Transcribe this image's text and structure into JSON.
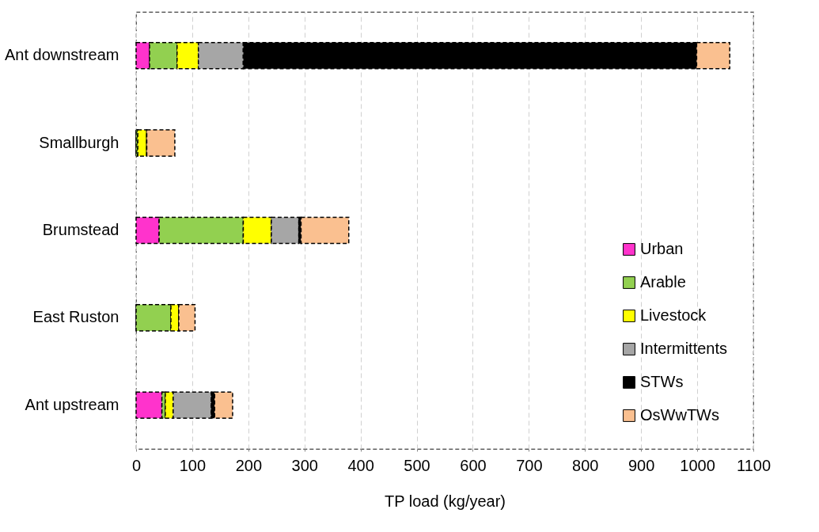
{
  "chart_data": {
    "type": "bar",
    "orientation": "horizontal",
    "stacked": true,
    "xlabel": "TP load (kg/year)",
    "categories": [
      "Ant downstream",
      "Smallburgh",
      "Brumstead",
      "East Ruston",
      "Ant upstream"
    ],
    "series": [
      {
        "name": "Urban",
        "color": "#ff33cc",
        "values": [
          24,
          0,
          41,
          0,
          46
        ]
      },
      {
        "name": "Arable",
        "color": "#92d050",
        "values": [
          49,
          3,
          150,
          62,
          6
        ]
      },
      {
        "name": "Livestock",
        "color": "#ffff00",
        "values": [
          38,
          16,
          50,
          14,
          14
        ]
      },
      {
        "name": "Intermittents",
        "color": "#a6a6a6",
        "values": [
          80,
          0,
          49,
          0,
          68
        ]
      },
      {
        "name": "STWs",
        "color": "#000000",
        "values": [
          808,
          0,
          4,
          0,
          6
        ]
      },
      {
        "name": "OsWwTWs",
        "color": "#fac090",
        "values": [
          59,
          50,
          85,
          29,
          32
        ]
      }
    ],
    "xlim": [
      0,
      1100
    ],
    "xticks": [
      0,
      100,
      200,
      300,
      400,
      500,
      600,
      700,
      800,
      900,
      1000,
      1100
    ],
    "grid": "x",
    "legend": "bottom right"
  }
}
